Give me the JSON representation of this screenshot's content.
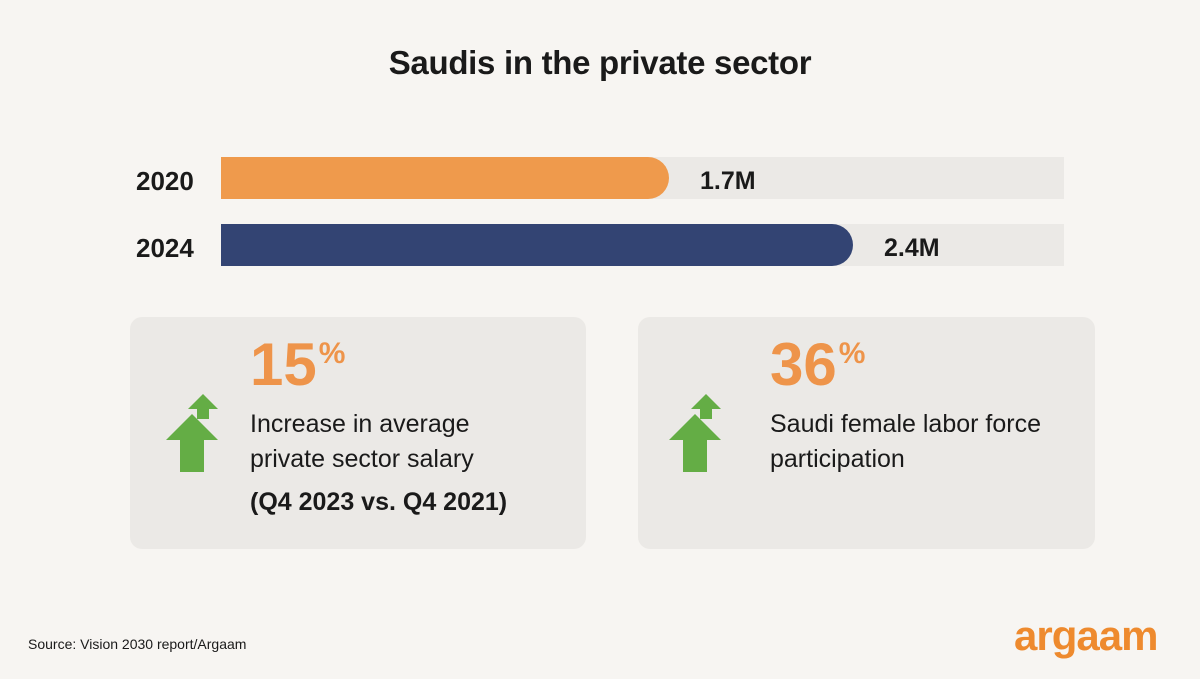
{
  "title": "Saudis in the private sector",
  "chart_data": {
    "type": "bar",
    "orientation": "horizontal",
    "title": "Saudis in the private sector",
    "categories": [
      "2020",
      "2024"
    ],
    "values": [
      1.7,
      2.4
    ],
    "value_labels": [
      "1.7M",
      "2.4M"
    ],
    "unit": "M",
    "xlim": [
      0,
      3.2
    ],
    "colors": [
      "#ef9a4c",
      "#334473"
    ],
    "track_color": "#ebe9e6",
    "grid": false
  },
  "cards": [
    {
      "big_number": "15",
      "big_suffix": "%",
      "description_line1": "Increase in average",
      "description_line2": "private sector salary",
      "subtext": "(Q4 2023 vs. Q4 2021)",
      "icon": "double-up-arrow-icon"
    },
    {
      "big_number": "36",
      "big_suffix": "%",
      "description_line1": "Saudi female labor force",
      "description_line2": "participation",
      "icon": "double-up-arrow-icon"
    }
  ],
  "colors": {
    "accent": "#ee944a",
    "arrow": "#64ad45",
    "background": "#f7f5f2"
  },
  "source": "Source: Vision 2030 report/Argaam",
  "logo": "argaam"
}
